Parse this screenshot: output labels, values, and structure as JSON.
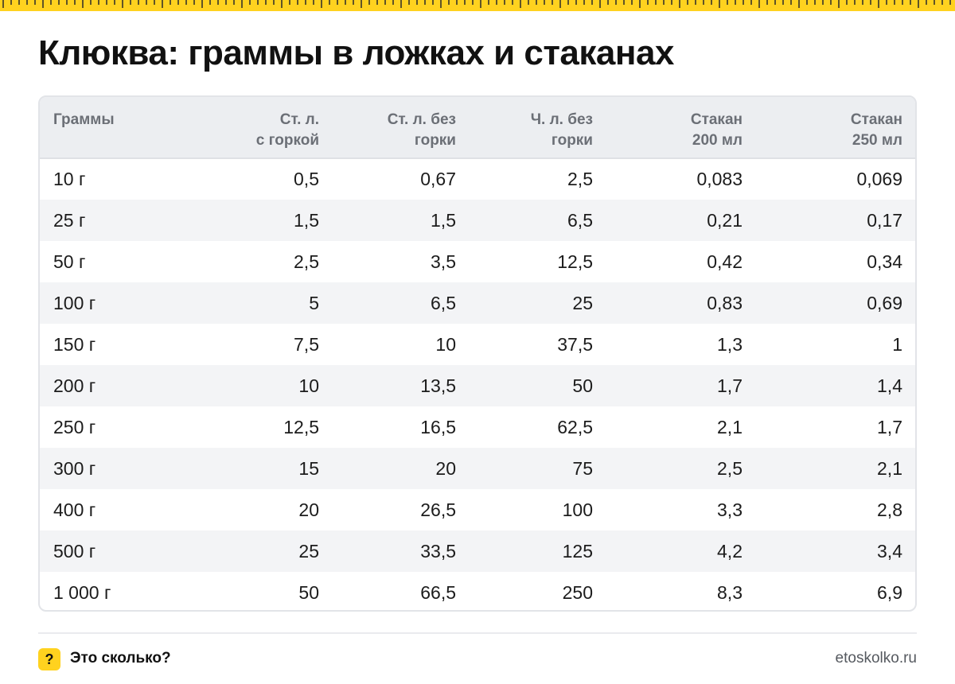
{
  "title": "Клюква: граммы в ложках и стаканах",
  "colors": {
    "accent": "#ffd21f",
    "header_bg": "#eceef1",
    "stripe_bg": "#f3f4f6"
  },
  "table": {
    "headers": [
      [
        "Граммы"
      ],
      [
        "Ст. л.",
        "с горкой"
      ],
      [
        "Ст. л. без",
        "горки"
      ],
      [
        "Ч. л. без",
        "горки"
      ],
      [
        "Стакан",
        "200 мл"
      ],
      [
        "Стакан",
        "250 мл"
      ]
    ],
    "rows": [
      [
        "10 г",
        "0,5",
        "0,67",
        "2,5",
        "0,083",
        "0,069"
      ],
      [
        "25 г",
        "1,5",
        "1,5",
        "6,5",
        "0,21",
        "0,17"
      ],
      [
        "50 г",
        "2,5",
        "3,5",
        "12,5",
        "0,42",
        "0,34"
      ],
      [
        "100 г",
        "5",
        "6,5",
        "25",
        "0,83",
        "0,69"
      ],
      [
        "150 г",
        "7,5",
        "10",
        "37,5",
        "1,3",
        "1"
      ],
      [
        "200 г",
        "10",
        "13,5",
        "50",
        "1,7",
        "1,4"
      ],
      [
        "250 г",
        "12,5",
        "16,5",
        "62,5",
        "2,1",
        "1,7"
      ],
      [
        "300 г",
        "15",
        "20",
        "75",
        "2,5",
        "2,1"
      ],
      [
        "400 г",
        "20",
        "26,5",
        "100",
        "3,3",
        "2,8"
      ],
      [
        "500 г",
        "25",
        "33,5",
        "125",
        "4,2",
        "3,4"
      ],
      [
        "1 000 г",
        "50",
        "66,5",
        "250",
        "8,3",
        "6,9"
      ]
    ]
  },
  "footer": {
    "badge_icon": "question-mark-icon",
    "badge_glyph": "?",
    "brand": "Это сколько?",
    "site": "etoskolko.ru"
  }
}
